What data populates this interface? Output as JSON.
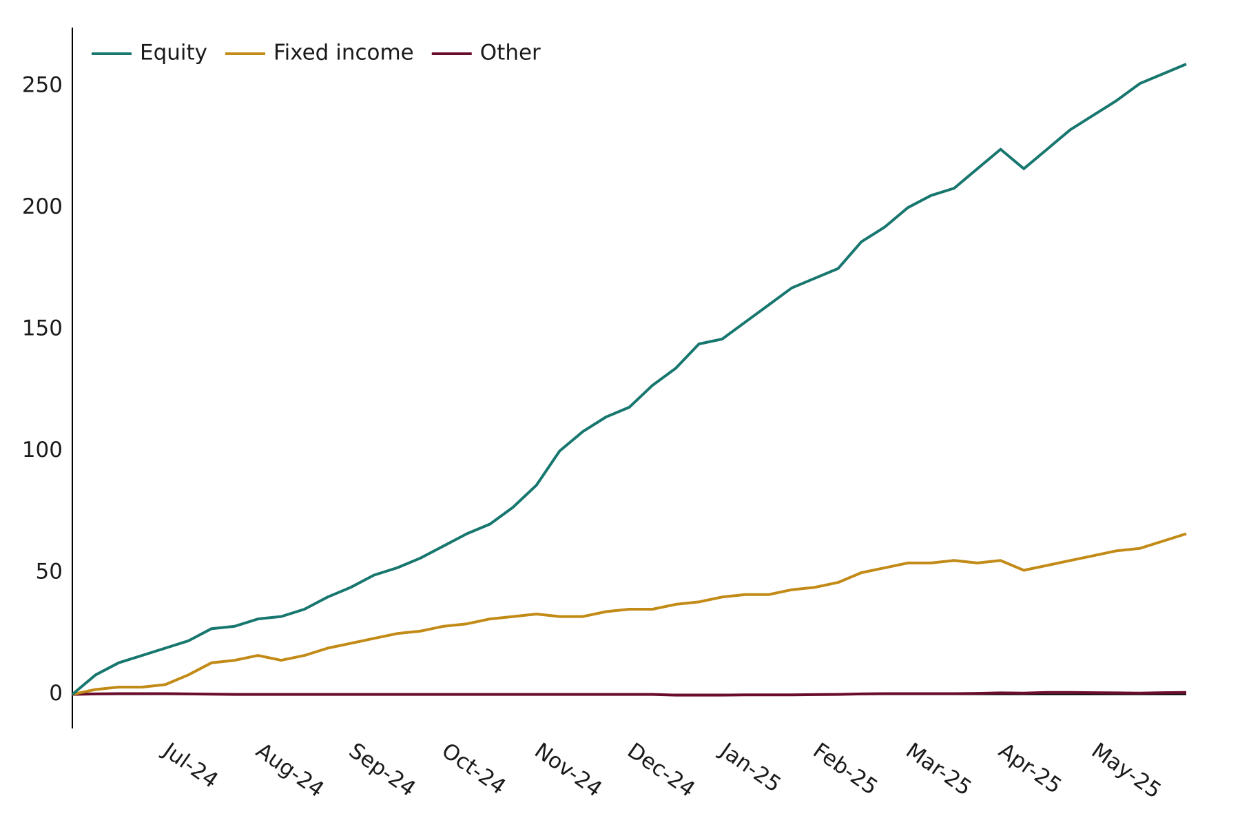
{
  "chart_data": {
    "type": "line",
    "categories": [
      null,
      null,
      null,
      null,
      "Jul-24",
      null,
      null,
      null,
      "Aug-24",
      null,
      null,
      null,
      "Sep-24",
      null,
      null,
      null,
      "Oct-24",
      null,
      null,
      null,
      "Nov-24",
      null,
      null,
      null,
      "Dec-24",
      null,
      null,
      null,
      "Jan-25",
      null,
      null,
      null,
      "Feb-25",
      null,
      null,
      null,
      "Mar-25",
      null,
      null,
      null,
      "Apr-25",
      null,
      null,
      null,
      "May-25",
      null,
      null,
      null,
      null
    ],
    "series": [
      {
        "name": "Equity",
        "color": "#17776f",
        "values": [
          0,
          8,
          13,
          16,
          19,
          22,
          27,
          28,
          31,
          32,
          35,
          40,
          44,
          49,
          52,
          56,
          61,
          66,
          70,
          77,
          86,
          100,
          108,
          114,
          118,
          127,
          134,
          144,
          146,
          153,
          160,
          167,
          171,
          175,
          186,
          192,
          200,
          205,
          208,
          216,
          224,
          216,
          224,
          232,
          238,
          244,
          251,
          255,
          259
        ]
      },
      {
        "name": "Fixed income",
        "color": "#c28a16",
        "values": [
          0,
          2,
          3,
          3,
          4,
          8,
          13,
          14,
          16,
          14,
          16,
          19,
          21,
          23,
          25,
          26,
          28,
          29,
          31,
          32,
          33,
          32,
          32,
          34,
          35,
          35,
          37,
          38,
          40,
          41,
          41,
          43,
          44,
          46,
          50,
          52,
          54,
          54,
          55,
          54,
          55,
          51,
          53,
          55,
          57,
          59,
          60,
          63,
          66
        ]
      },
      {
        "name": "Other",
        "color": "#6a0c2b",
        "values": [
          0,
          0.2,
          0.3,
          0.3,
          0.3,
          0.2,
          0.1,
          0,
          0,
          0,
          0,
          0,
          0,
          0,
          0,
          0,
          0,
          0,
          0,
          0,
          0,
          0,
          0,
          0,
          0,
          0,
          -0.3,
          -0.3,
          -0.3,
          -0.2,
          -0.2,
          -0.2,
          -0.1,
          0,
          0.2,
          0.3,
          0.3,
          0.3,
          0.3,
          0.4,
          0.6,
          0.5,
          0.8,
          0.8,
          0.7,
          0.6,
          0.5,
          0.7,
          0.8
        ]
      }
    ],
    "ylim": [
      -14,
      274
    ],
    "yticks": [
      0,
      50,
      100,
      150,
      200,
      250
    ],
    "grid": false,
    "legend": "top-left"
  }
}
